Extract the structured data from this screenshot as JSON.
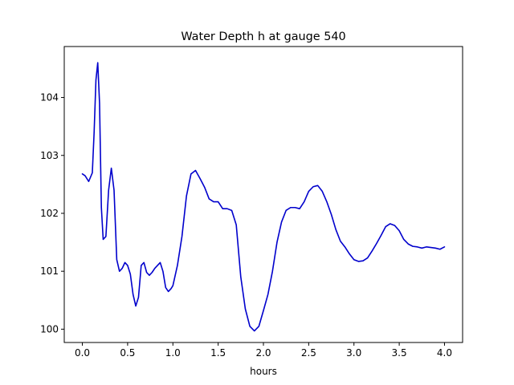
{
  "chart_data": {
    "type": "line",
    "title": "Water Depth h at gauge 540",
    "xlabel": "hours",
    "ylabel": "",
    "xlim": [
      -0.2,
      4.2
    ],
    "ylim": [
      99.77,
      104.88
    ],
    "x_ticks": [
      {
        "value": 0.0,
        "label": "0.0"
      },
      {
        "value": 0.5,
        "label": "0.5"
      },
      {
        "value": 1.0,
        "label": "1.0"
      },
      {
        "value": 1.5,
        "label": "1.5"
      },
      {
        "value": 2.0,
        "label": "2.0"
      },
      {
        "value": 2.5,
        "label": "2.5"
      },
      {
        "value": 3.0,
        "label": "3.0"
      },
      {
        "value": 3.5,
        "label": "3.5"
      },
      {
        "value": 4.0,
        "label": "4.0"
      }
    ],
    "y_ticks": [
      {
        "value": 100,
        "label": "100"
      },
      {
        "value": 101,
        "label": "101"
      },
      {
        "value": 102,
        "label": "102"
      },
      {
        "value": 103,
        "label": "103"
      },
      {
        "value": 104,
        "label": "104"
      }
    ],
    "grid": false,
    "series": [
      {
        "color": "#0000cc",
        "x": [
          0.0,
          0.03,
          0.07,
          0.11,
          0.13,
          0.15,
          0.17,
          0.19,
          0.21,
          0.23,
          0.26,
          0.29,
          0.32,
          0.35,
          0.38,
          0.41,
          0.44,
          0.47,
          0.5,
          0.53,
          0.56,
          0.59,
          0.62,
          0.65,
          0.68,
          0.71,
          0.74,
          0.77,
          0.8,
          0.83,
          0.86,
          0.89,
          0.92,
          0.95,
          0.98,
          1.0,
          1.05,
          1.1,
          1.15,
          1.2,
          1.25,
          1.3,
          1.35,
          1.4,
          1.45,
          1.5,
          1.55,
          1.6,
          1.65,
          1.7,
          1.75,
          1.8,
          1.85,
          1.9,
          1.95,
          2.0,
          2.05,
          2.1,
          2.15,
          2.2,
          2.25,
          2.3,
          2.35,
          2.4,
          2.45,
          2.5,
          2.55,
          2.6,
          2.65,
          2.7,
          2.75,
          2.8,
          2.85,
          2.9,
          2.95,
          3.0,
          3.05,
          3.1,
          3.15,
          3.2,
          3.25,
          3.3,
          3.35,
          3.4,
          3.45,
          3.5,
          3.55,
          3.6,
          3.65,
          3.7,
          3.75,
          3.8,
          3.85,
          3.9,
          3.95,
          4.0
        ],
        "y": [
          102.68,
          102.65,
          102.55,
          102.7,
          103.4,
          104.3,
          104.6,
          103.9,
          102.1,
          101.55,
          101.6,
          102.4,
          102.78,
          102.4,
          101.2,
          101.0,
          101.05,
          101.15,
          101.1,
          100.95,
          100.6,
          100.4,
          100.55,
          101.1,
          101.15,
          100.98,
          100.93,
          100.98,
          101.05,
          101.1,
          101.15,
          101.0,
          100.72,
          100.65,
          100.7,
          100.75,
          101.1,
          101.6,
          102.3,
          102.68,
          102.74,
          102.6,
          102.45,
          102.25,
          102.2,
          102.2,
          102.08,
          102.08,
          102.05,
          101.8,
          100.9,
          100.35,
          100.05,
          99.97,
          100.05,
          100.32,
          100.6,
          101.0,
          101.5,
          101.85,
          102.05,
          102.1,
          102.1,
          102.08,
          102.2,
          102.38,
          102.46,
          102.48,
          102.38,
          102.2,
          101.98,
          101.72,
          101.52,
          101.42,
          101.3,
          101.2,
          101.17,
          101.18,
          101.23,
          101.35,
          101.48,
          101.62,
          101.77,
          101.82,
          101.79,
          101.7,
          101.55,
          101.47,
          101.43,
          101.42,
          101.4,
          101.42,
          101.41,
          101.4,
          101.38,
          101.42
        ]
      }
    ]
  }
}
